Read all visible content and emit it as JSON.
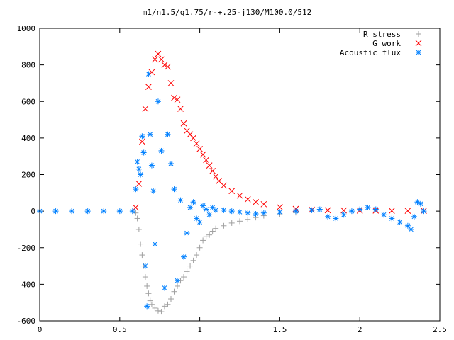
{
  "chart_data": {
    "type": "scatter",
    "title": "m1/n1.5/q1.75/r-+.25-j130/M100.0/512",
    "xlabel": "",
    "ylabel": "",
    "xlim": [
      0,
      2.5
    ],
    "ylim": [
      -600,
      1000
    ],
    "x_ticks": [
      {
        "value": 0,
        "label": "0"
      },
      {
        "value": 0.5,
        "label": "0.5"
      },
      {
        "value": 1,
        "label": "1"
      },
      {
        "value": 1.5,
        "label": "1.5"
      },
      {
        "value": 2,
        "label": "2"
      },
      {
        "value": 2.5,
        "label": "2.5"
      }
    ],
    "y_ticks": [
      {
        "value": -600,
        "label": "-600"
      },
      {
        "value": -400,
        "label": "-400"
      },
      {
        "value": -200,
        "label": "-200"
      },
      {
        "value": 0,
        "label": "0"
      },
      {
        "value": 200,
        "label": "200"
      },
      {
        "value": 400,
        "label": "400"
      },
      {
        "value": 600,
        "label": "600"
      },
      {
        "value": 800,
        "label": "800"
      },
      {
        "value": 1000,
        "label": "1000"
      }
    ],
    "grid": false,
    "legend_position": "top-right",
    "series": [
      {
        "name": "R stress",
        "marker": "plus",
        "color": "#a0a0a0",
        "x": [
          0.6,
          0.61,
          0.62,
          0.63,
          0.64,
          0.65,
          0.66,
          0.67,
          0.68,
          0.69,
          0.7,
          0.72,
          0.74,
          0.76,
          0.78,
          0.8,
          0.82,
          0.84,
          0.86,
          0.88,
          0.9,
          0.92,
          0.94,
          0.96,
          0.98,
          1.0,
          1.02,
          1.04,
          1.06,
          1.08,
          1.1,
          1.15,
          1.2,
          1.25,
          1.3,
          1.35,
          1.4,
          1.5,
          1.6
        ],
        "y": [
          -10,
          -40,
          -100,
          -180,
          -240,
          -300,
          -360,
          -410,
          -450,
          -490,
          -510,
          -530,
          -545,
          -550,
          -520,
          -510,
          -480,
          -440,
          -410,
          -380,
          -360,
          -330,
          -300,
          -270,
          -240,
          -200,
          -160,
          -140,
          -130,
          -110,
          -95,
          -80,
          -65,
          -55,
          -45,
          -35,
          -25,
          -15,
          -8
        ]
      },
      {
        "name": "G work",
        "marker": "cross",
        "color": "#ff0000",
        "x": [
          0.6,
          0.62,
          0.64,
          0.66,
          0.68,
          0.7,
          0.72,
          0.74,
          0.76,
          0.78,
          0.8,
          0.82,
          0.84,
          0.86,
          0.88,
          0.9,
          0.92,
          0.94,
          0.96,
          0.98,
          1.0,
          1.02,
          1.04,
          1.06,
          1.08,
          1.1,
          1.12,
          1.15,
          1.2,
          1.25,
          1.3,
          1.35,
          1.4,
          1.5,
          1.6,
          1.7,
          1.8,
          1.9,
          2.0,
          2.1,
          2.2,
          2.3,
          2.4
        ],
        "y": [
          20,
          150,
          380,
          560,
          680,
          760,
          830,
          860,
          830,
          800,
          790,
          700,
          620,
          610,
          560,
          480,
          440,
          420,
          400,
          370,
          340,
          310,
          280,
          250,
          220,
          190,
          165,
          140,
          110,
          85,
          65,
          50,
          38,
          22,
          12,
          8,
          5,
          4,
          3,
          3,
          2,
          2,
          2
        ]
      },
      {
        "name": "Acoustic flux",
        "marker": "star",
        "color": "#0080ff",
        "x": [
          0.0,
          0.1,
          0.2,
          0.3,
          0.4,
          0.5,
          0.58,
          0.6,
          0.61,
          0.62,
          0.63,
          0.64,
          0.65,
          0.66,
          0.67,
          0.68,
          0.69,
          0.7,
          0.71,
          0.72,
          0.74,
          0.76,
          0.78,
          0.8,
          0.82,
          0.84,
          0.86,
          0.88,
          0.9,
          0.92,
          0.94,
          0.96,
          0.98,
          1.0,
          1.02,
          1.04,
          1.06,
          1.08,
          1.1,
          1.15,
          1.2,
          1.25,
          1.3,
          1.35,
          1.4,
          1.5,
          1.6,
          1.7,
          1.75,
          1.8,
          1.85,
          1.9,
          1.95,
          2.0,
          2.05,
          2.1,
          2.15,
          2.2,
          2.25,
          2.3,
          2.32,
          2.34,
          2.36,
          2.38,
          2.4
        ],
        "y": [
          0,
          0,
          0,
          0,
          0,
          0,
          0,
          120,
          270,
          230,
          200,
          410,
          320,
          -300,
          -520,
          750,
          420,
          250,
          110,
          -180,
          600,
          330,
          -420,
          420,
          260,
          120,
          -380,
          60,
          -250,
          -120,
          20,
          50,
          -40,
          -60,
          30,
          10,
          -20,
          20,
          5,
          5,
          0,
          -5,
          -10,
          -15,
          -10,
          -5,
          0,
          5,
          10,
          -30,
          -40,
          -20,
          0,
          10,
          20,
          10,
          -20,
          -40,
          -60,
          -80,
          -100,
          -30,
          50,
          40,
          0
        ]
      }
    ]
  }
}
